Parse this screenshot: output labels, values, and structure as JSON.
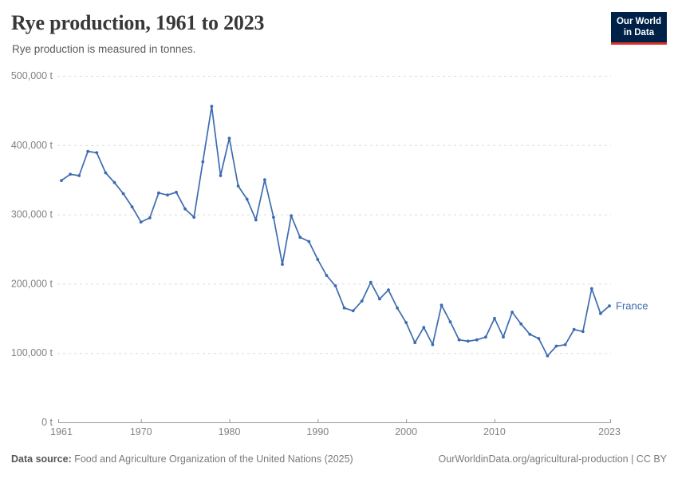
{
  "header": {
    "title": "Rye production, 1961 to 2023",
    "subtitle": "Rye production is measured in tonnes."
  },
  "logo": {
    "line1": "Our World",
    "line2": "in Data"
  },
  "chart_data": {
    "type": "line",
    "title": "Rye production, 1961 to 2023",
    "ylabel": "tonnes",
    "unit": "t",
    "grid": true,
    "legend_position": "end-of-line-label",
    "xlim": [
      1961,
      2023
    ],
    "ylim": [
      0,
      500000
    ],
    "xticks": [
      1961,
      1970,
      1980,
      1990,
      2000,
      2010,
      2023
    ],
    "yticks": [
      0,
      100000,
      200000,
      300000,
      400000,
      500000
    ],
    "x": [
      1961,
      1962,
      1963,
      1964,
      1965,
      1966,
      1967,
      1968,
      1969,
      1970,
      1971,
      1972,
      1973,
      1974,
      1975,
      1976,
      1977,
      1978,
      1979,
      1980,
      1981,
      1982,
      1983,
      1984,
      1985,
      1986,
      1987,
      1988,
      1989,
      1990,
      1991,
      1992,
      1993,
      1994,
      1995,
      1996,
      1997,
      1998,
      1999,
      2000,
      2001,
      2002,
      2003,
      2004,
      2005,
      2006,
      2007,
      2008,
      2009,
      2010,
      2011,
      2012,
      2013,
      2014,
      2015,
      2016,
      2017,
      2018,
      2019,
      2020,
      2021,
      2022,
      2023
    ],
    "series": [
      {
        "name": "France",
        "color": "#3d6bb0",
        "values": [
          349000,
          358000,
          356000,
          391000,
          389000,
          360000,
          346000,
          330000,
          311000,
          289000,
          295000,
          331000,
          328000,
          332000,
          308000,
          296000,
          376000,
          456000,
          356000,
          410000,
          341000,
          322000,
          292000,
          350000,
          296000,
          228000,
          298000,
          267000,
          261000,
          235000,
          212000,
          197000,
          165000,
          161000,
          175000,
          202000,
          178000,
          191000,
          165000,
          144000,
          115000,
          137000,
          112000,
          169000,
          145000,
          119000,
          117000,
          119000,
          123000,
          150000,
          123000,
          159000,
          142000,
          127000,
          121000,
          96000,
          110000,
          112000,
          134000,
          131000,
          193000,
          157000,
          168000
        ]
      }
    ],
    "end_label": "France"
  },
  "footer": {
    "source_label": "Data source:",
    "source_text": " Food and Agriculture Organization of the United Nations (2025)",
    "link_text": "OurWorldinData.org/agricultural-production | CC BY"
  },
  "colors": {
    "line": "#3d6bb0",
    "grid": "#dcdcdc",
    "axis": "#9a9a9a",
    "tick_text": "#828282",
    "logo_bg": "#002147",
    "logo_accent": "#d8352a"
  }
}
